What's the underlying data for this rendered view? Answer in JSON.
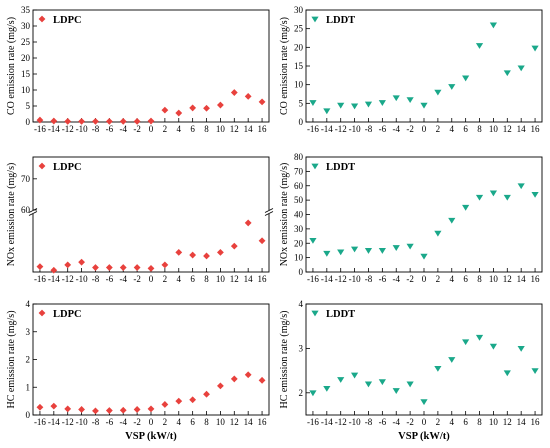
{
  "colors": {
    "ldpc": "#e8413d",
    "lddt": "#1aa88a"
  },
  "x_axis_label": "VSP (kW/t)",
  "chart_data": [
    {
      "type": "scatter",
      "marker": "diamond",
      "legend": "LDPC",
      "legend_position": "top-left",
      "ylabel": "CO emission rate (mg/s)",
      "ylim": [
        0,
        35
      ],
      "yticks": [
        0,
        5,
        10,
        15,
        20,
        25,
        30,
        35
      ],
      "xlim": [
        -17,
        17
      ],
      "xticks": [
        -16,
        -14,
        -12,
        -10,
        -8,
        -6,
        -4,
        -2,
        0,
        2,
        4,
        6,
        8,
        10,
        12,
        14,
        16
      ],
      "x": [
        -16,
        -14,
        -12,
        -10,
        -8,
        -6,
        -4,
        -2,
        0,
        2,
        4,
        6,
        8,
        10,
        12,
        14,
        16
      ],
      "values": [
        0.6,
        0.3,
        0.2,
        0.2,
        0.2,
        0.2,
        0.2,
        0.2,
        0.3,
        3.7,
        2.8,
        4.4,
        4.3,
        5.3,
        9.2,
        8.0,
        6.3
      ]
    },
    {
      "type": "scatter",
      "marker": "triangle-down",
      "legend": "LDDT",
      "legend_position": "top-left",
      "ylabel": "CO emission rate (mg/s)",
      "ylim": [
        0,
        30
      ],
      "yticks": [
        0,
        5,
        10,
        15,
        20,
        25,
        30
      ],
      "xlim": [
        -17,
        17
      ],
      "xticks": [
        -16,
        -14,
        -12,
        -10,
        -8,
        -6,
        -4,
        -2,
        0,
        2,
        4,
        6,
        8,
        10,
        12,
        14,
        16
      ],
      "x": [
        -16,
        -14,
        -12,
        -10,
        -8,
        -6,
        -4,
        -2,
        0,
        2,
        4,
        6,
        8,
        10,
        12,
        14,
        16
      ],
      "values": [
        5.2,
        3.0,
        4.5,
        4.3,
        4.8,
        5.2,
        6.5,
        6.0,
        4.5,
        8.0,
        9.5,
        11.8,
        20.5,
        26.0,
        13.2,
        14.5,
        19.8
      ]
    },
    {
      "type": "scatter",
      "marker": "diamond",
      "legend": "LDPC",
      "legend_position": "top-left",
      "ylabel": "NOx emission rate (mg/s)",
      "broken_axis": true,
      "ylim_lower": [
        0,
        6.5
      ],
      "yticks_lower": [],
      "ylim_upper": [
        60,
        77
      ],
      "yticks_upper": [
        60,
        70
      ],
      "xlim": [
        -17,
        17
      ],
      "xticks": [
        -16,
        -14,
        -12,
        -10,
        -8,
        -6,
        -4,
        -2,
        0,
        2,
        4,
        6,
        8,
        10,
        12,
        14,
        16
      ],
      "x": [
        -16,
        -14,
        -12,
        -10,
        -8,
        -6,
        -4,
        -2,
        0,
        2,
        4,
        6,
        8,
        10,
        12,
        14,
        16
      ],
      "values": [
        0.6,
        0.2,
        0.8,
        1.1,
        0.5,
        0.5,
        0.5,
        0.5,
        0.4,
        0.8,
        2.2,
        1.9,
        1.8,
        2.2,
        2.9,
        5.5,
        3.5
      ]
    },
    {
      "type": "scatter",
      "marker": "triangle-down",
      "legend": "LDDT",
      "legend_position": "top-left",
      "ylabel": "NOx emission rate (mg/s)",
      "ylim": [
        0,
        80
      ],
      "yticks": [
        0,
        10,
        20,
        30,
        40,
        50,
        60,
        70,
        80
      ],
      "xlim": [
        -17,
        17
      ],
      "xticks": [
        -16,
        -14,
        -12,
        -10,
        -8,
        -6,
        -4,
        -2,
        0,
        2,
        4,
        6,
        8,
        10,
        12,
        14,
        16
      ],
      "x": [
        -16,
        -14,
        -12,
        -10,
        -8,
        -6,
        -4,
        -2,
        0,
        2,
        4,
        6,
        8,
        10,
        12,
        14,
        16
      ],
      "values": [
        22,
        13,
        14,
        16,
        15,
        15,
        17,
        18,
        11,
        27,
        36,
        45,
        52,
        55,
        52,
        60,
        54
      ]
    },
    {
      "type": "scatter",
      "marker": "diamond",
      "legend": "LDPC",
      "legend_position": "top-left",
      "ylabel": "HC emission rate (mg/s)",
      "ylim": [
        0,
        4
      ],
      "yticks": [
        0,
        1,
        2,
        3,
        4
      ],
      "xlim": [
        -17,
        17
      ],
      "xticks": [
        -16,
        -14,
        -12,
        -10,
        -8,
        -6,
        -4,
        -2,
        0,
        2,
        4,
        6,
        8,
        10,
        12,
        14,
        16
      ],
      "x": [
        -16,
        -14,
        -12,
        -10,
        -8,
        -6,
        -4,
        -2,
        0,
        2,
        4,
        6,
        8,
        10,
        12,
        14,
        16
      ],
      "values": [
        0.28,
        0.32,
        0.22,
        0.2,
        0.15,
        0.16,
        0.17,
        0.2,
        0.22,
        0.38,
        0.5,
        0.55,
        0.75,
        1.05,
        1.3,
        1.45,
        1.25
      ]
    },
    {
      "type": "scatter",
      "marker": "triangle-down",
      "legend": "LDDT",
      "legend_position": "top-left",
      "ylabel": "HC emission rate (mg/s)",
      "ylim": [
        1.5,
        4
      ],
      "yticks": [
        2,
        3,
        4
      ],
      "xlim": [
        -17,
        17
      ],
      "xticks": [
        -16,
        -14,
        -12,
        -10,
        -8,
        -6,
        -4,
        -2,
        0,
        2,
        4,
        6,
        8,
        10,
        12,
        14,
        16
      ],
      "x": [
        -16,
        -14,
        -12,
        -10,
        -8,
        -6,
        -4,
        -2,
        0,
        2,
        4,
        6,
        8,
        10,
        12,
        14,
        16
      ],
      "values": [
        2.0,
        2.1,
        2.3,
        2.4,
        2.2,
        2.25,
        2.05,
        2.2,
        1.8,
        2.55,
        2.75,
        3.15,
        3.25,
        3.05,
        2.45,
        3.0,
        2.5
      ]
    }
  ]
}
